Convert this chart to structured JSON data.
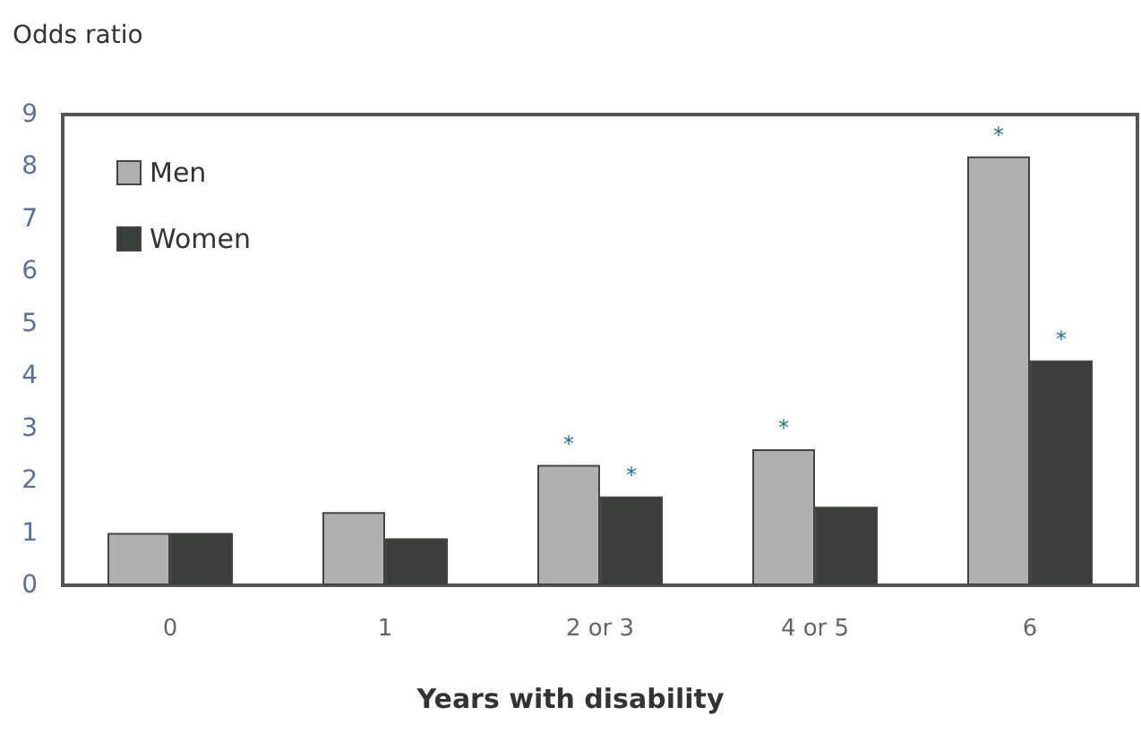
{
  "chart_data": {
    "type": "bar",
    "ylabel": "Odds ratio",
    "xlabel": "Years with disability",
    "categories": [
      "0",
      "1",
      "2 or 3",
      "4 or 5",
      "6"
    ],
    "series": [
      {
        "name": "Men",
        "color": "#b0b0b0",
        "values": [
          1.0,
          1.4,
          2.3,
          2.6,
          8.2
        ]
      },
      {
        "name": "Women",
        "color": "#3a3d38",
        "values": [
          1.0,
          0.9,
          1.7,
          1.5,
          4.3
        ]
      }
    ],
    "ylim": [
      0,
      9
    ],
    "yticks": [
      0,
      1,
      2,
      3,
      4,
      5,
      6,
      7,
      8,
      9
    ],
    "grid": false,
    "legend": "top left",
    "annotations": [
      {
        "text": "*",
        "x": "2 or 3",
        "y": 2.3
      },
      {
        "text": "*",
        "x": "2 or 3",
        "y": 1.7
      },
      {
        "text": "*",
        "x": "4 or 5",
        "y": 2.6
      },
      {
        "text": "*",
        "x": "6",
        "y": 8.2
      },
      {
        "text": "*",
        "x": "6",
        "y": 4.3
      }
    ]
  }
}
